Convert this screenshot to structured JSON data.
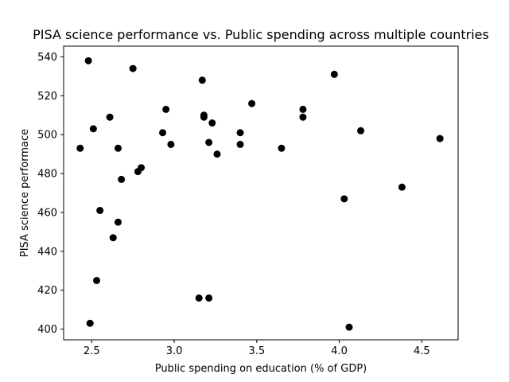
{
  "chart_data": {
    "type": "scatter",
    "title": "PISA science performance vs. Public spending across multiple countries",
    "xlabel": "Public spending on education (% of GDP)",
    "ylabel": "PISA science performace",
    "xlim": [
      2.33,
      4.72
    ],
    "ylim": [
      394.5,
      545.5
    ],
    "xticks": [
      2.5,
      3.0,
      3.5,
      4.0,
      4.5
    ],
    "xtick_labels": [
      "2.5",
      "3.0",
      "3.5",
      "4.0",
      "4.5"
    ],
    "yticks": [
      400,
      420,
      440,
      460,
      480,
      500,
      520,
      540
    ],
    "ytick_labels": [
      "400",
      "420",
      "440",
      "460",
      "480",
      "500",
      "520",
      "540"
    ],
    "grid": false,
    "marker_color": "#000000",
    "points": [
      {
        "x": 2.43,
        "y": 493
      },
      {
        "x": 2.48,
        "y": 538
      },
      {
        "x": 2.49,
        "y": 403
      },
      {
        "x": 2.51,
        "y": 503
      },
      {
        "x": 2.53,
        "y": 425
      },
      {
        "x": 2.55,
        "y": 461
      },
      {
        "x": 2.61,
        "y": 509
      },
      {
        "x": 2.63,
        "y": 447
      },
      {
        "x": 2.66,
        "y": 493
      },
      {
        "x": 2.66,
        "y": 455
      },
      {
        "x": 2.68,
        "y": 477
      },
      {
        "x": 2.75,
        "y": 534
      },
      {
        "x": 2.78,
        "y": 481
      },
      {
        "x": 2.8,
        "y": 483
      },
      {
        "x": 2.93,
        "y": 501
      },
      {
        "x": 2.95,
        "y": 513
      },
      {
        "x": 2.98,
        "y": 495
      },
      {
        "x": 3.15,
        "y": 416
      },
      {
        "x": 3.17,
        "y": 528
      },
      {
        "x": 3.18,
        "y": 510
      },
      {
        "x": 3.18,
        "y": 509
      },
      {
        "x": 3.21,
        "y": 496
      },
      {
        "x": 3.21,
        "y": 416
      },
      {
        "x": 3.23,
        "y": 506
      },
      {
        "x": 3.26,
        "y": 490
      },
      {
        "x": 3.4,
        "y": 501
      },
      {
        "x": 3.4,
        "y": 495
      },
      {
        "x": 3.47,
        "y": 516
      },
      {
        "x": 3.65,
        "y": 493
      },
      {
        "x": 3.78,
        "y": 513
      },
      {
        "x": 3.78,
        "y": 509
      },
      {
        "x": 3.97,
        "y": 531
      },
      {
        "x": 4.03,
        "y": 467
      },
      {
        "x": 4.06,
        "y": 401
      },
      {
        "x": 4.13,
        "y": 502
      },
      {
        "x": 4.38,
        "y": 473
      },
      {
        "x": 4.61,
        "y": 498
      }
    ]
  }
}
